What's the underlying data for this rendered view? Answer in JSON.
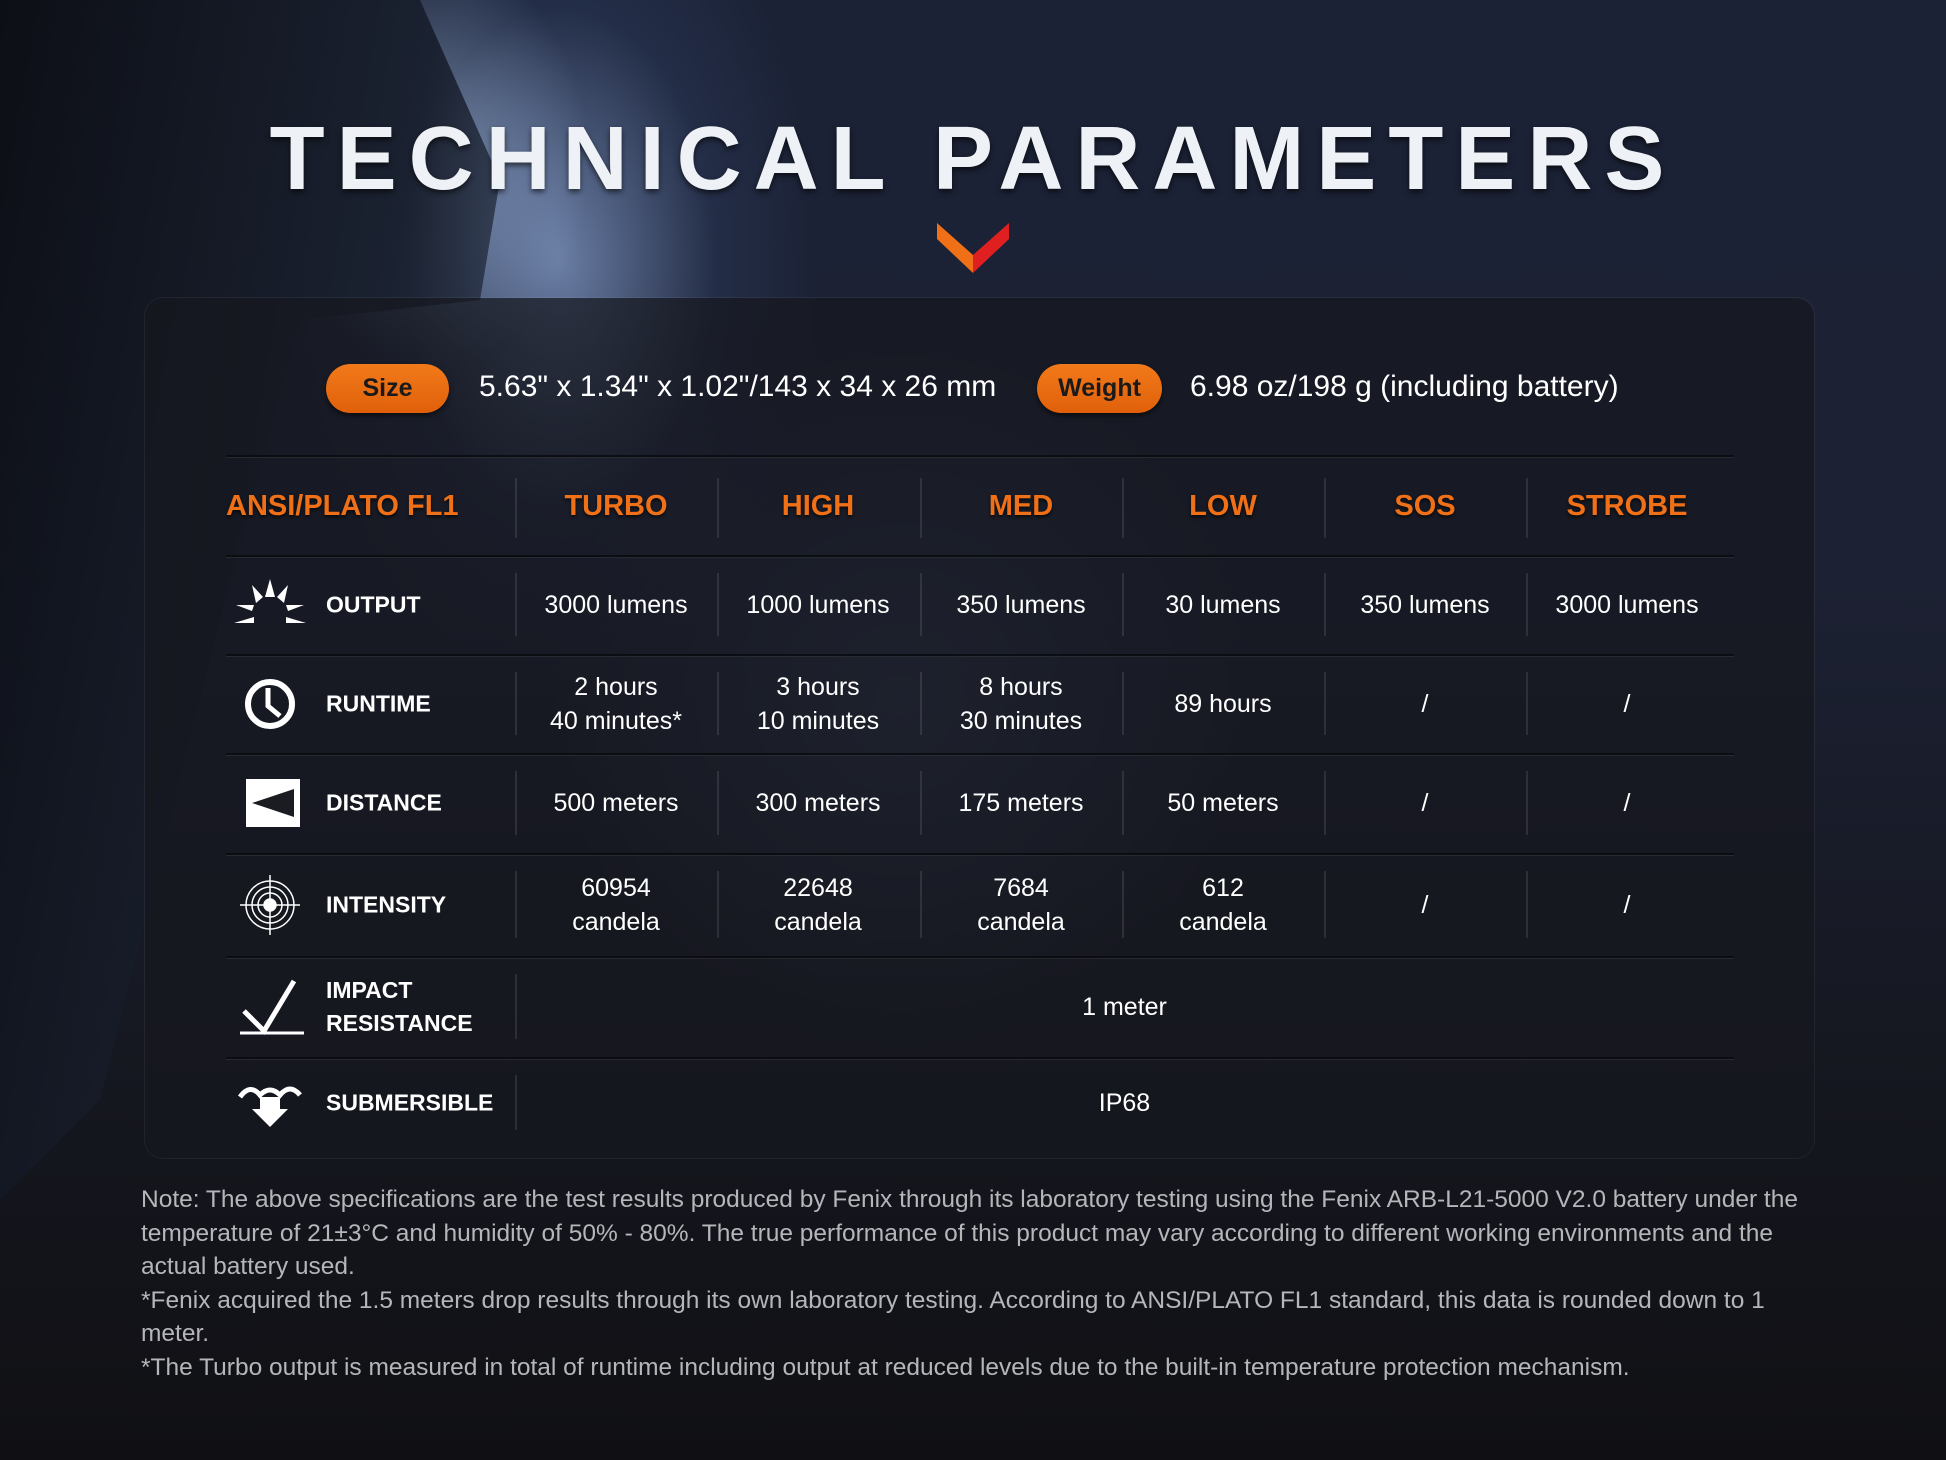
{
  "title": "TECHNICAL PARAMETERS",
  "colors": {
    "accent": "#f07018",
    "chevron_left": "#f07018",
    "chevron_right": "#e02020"
  },
  "specs": {
    "size_label": "Size",
    "size_value": "5.63\" x 1.34\" x 1.02\"/143 x 34 x 26 mm",
    "weight_label": "Weight",
    "weight_value": "6.98 oz/198 g (including battery)"
  },
  "table": {
    "headers": [
      "ANSI/PLATO FL1",
      "TURBO",
      "HIGH",
      "MED",
      "LOW",
      "SOS",
      "STROBE"
    ],
    "rows": [
      {
        "label": "OUTPUT",
        "icon": "output-sunburst-icon",
        "values": [
          "3000 lumens",
          "1000 lumens",
          "350 lumens",
          "30 lumens",
          "350 lumens",
          "3000 lumens"
        ]
      },
      {
        "label": "RUNTIME",
        "icon": "clock-icon",
        "values": [
          "2 hours\n40 minutes*",
          "3 hours\n10 minutes",
          "8 hours\n30 minutes",
          "89 hours",
          "/",
          "/"
        ]
      },
      {
        "label": "DISTANCE",
        "icon": "distance-beam-icon",
        "values": [
          "500 meters",
          "300 meters",
          "175 meters",
          "50 meters",
          "/",
          "/"
        ]
      },
      {
        "label": "INTENSITY",
        "icon": "target-icon",
        "values": [
          "60954\ncandela",
          "22648\ncandela",
          "7684\ncandela",
          "612\ncandela",
          "/",
          "/"
        ]
      },
      {
        "label": "IMPACT\nRESISTANCE",
        "icon": "impact-check-icon",
        "value": "1 meter"
      },
      {
        "label": "SUBMERSIBLE",
        "icon": "water-arrow-icon",
        "value": "IP68"
      }
    ]
  },
  "notes": [
    "Note: The above specifications are the test results produced by Fenix through its laboratory testing using the Fenix ARB-L21-5000 V2.0 battery under the temperature of 21±3°C and humidity of 50% - 80%. The true performance of this product may vary according to different working environments and the actual battery used.",
    "*Fenix acquired the 1.5 meters drop results through its own laboratory testing. According to ANSI/PLATO FL1 standard, this data is rounded down to 1 meter.",
    "*The Turbo output is measured in total of runtime including output at reduced levels due to the built-in temperature protection mechanism."
  ]
}
